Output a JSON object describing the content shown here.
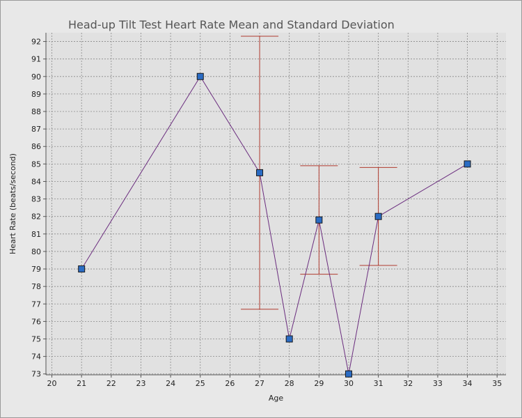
{
  "chart_data": {
    "type": "scatter",
    "title": "Head-up Tilt Test Heart Rate Mean and Standard Deviation",
    "xlabel": "Age",
    "ylabel": "Heart Rate (beats/second)",
    "xlim": [
      19.8,
      35.3
    ],
    "ylim": [
      72.95,
      92.5
    ],
    "x_ticks": [
      20,
      21,
      22,
      23,
      24,
      25,
      26,
      27,
      28,
      29,
      30,
      31,
      32,
      33,
      34,
      35
    ],
    "y_ticks": [
      73,
      74,
      75,
      76,
      77,
      78,
      79,
      80,
      81,
      82,
      83,
      84,
      85,
      86,
      87,
      88,
      89,
      90,
      91,
      92
    ],
    "grid": true,
    "series": [
      {
        "points": [
          {
            "x": 21,
            "y": 79
          },
          {
            "x": 25,
            "y": 90
          },
          {
            "x": 27,
            "y": 84.5,
            "std": 7.8
          },
          {
            "x": 28,
            "y": 75
          },
          {
            "x": 29,
            "y": 81.8,
            "std": 3.1
          },
          {
            "x": 30,
            "y": 73
          },
          {
            "x": 31,
            "y": 82,
            "std": 2.8
          },
          {
            "x": 34,
            "y": 85
          }
        ]
      }
    ],
    "colors": {
      "plot_background": "#e1e1e1",
      "grid": "#888888",
      "line": "#6a2c7e",
      "marker": "#2b6cc4",
      "marker_edge": "#1a1a1a",
      "error_bar": "#b03a2e"
    }
  }
}
